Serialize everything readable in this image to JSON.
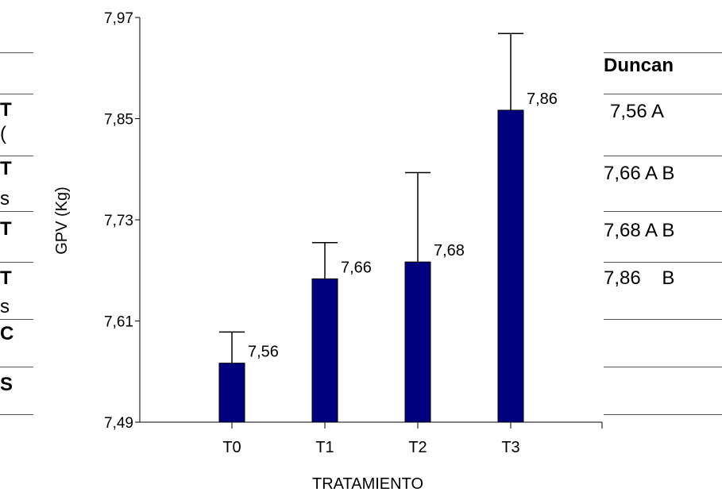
{
  "background_table": {
    "header": "Duncan",
    "left_fragments": [
      "T",
      "(",
      "T",
      "s",
      "T",
      "T",
      "s",
      "C",
      "S"
    ],
    "right_cells": [
      "7,56 A",
      "7,66 A B",
      "7,68 A B",
      "7,86    B"
    ]
  },
  "chart_data": {
    "type": "bar",
    "title": "",
    "xlabel": "TRATAMIENTO",
    "ylabel": "GPV (Kg)",
    "categories": [
      "T0",
      "T1",
      "T2",
      "T3"
    ],
    "values": [
      7.56,
      7.66,
      7.68,
      7.86
    ],
    "value_labels": [
      "7,56",
      "7,66",
      "7,68",
      "7,86"
    ],
    "error_upper": [
      7.597,
      7.703,
      7.786,
      7.951
    ],
    "ylim": [
      7.49,
      7.97
    ],
    "yticks": [
      7.49,
      7.61,
      7.73,
      7.85,
      7.97
    ],
    "ytick_labels": [
      "7,49",
      "7,61",
      "7,73",
      "7,85",
      "7,97"
    ],
    "colors": {
      "bar": "#00007f",
      "bar_edge": "#000000",
      "axis": "#000000"
    },
    "grid": false,
    "legend": "none"
  }
}
